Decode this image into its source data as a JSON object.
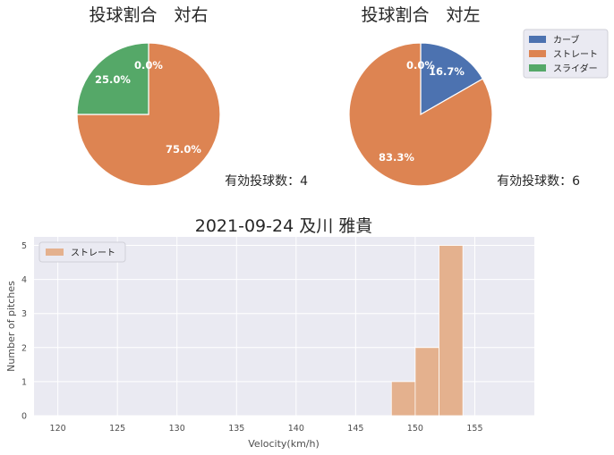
{
  "chart_data": [
    {
      "type": "pie",
      "title": "投球割合　対右",
      "count_label": "有効投球数：4",
      "slices": [
        {
          "name": "カーブ",
          "value": 0.0,
          "label": "0.0%"
        },
        {
          "name": "ストレート",
          "value": 75.0,
          "label": "75.0%"
        },
        {
          "name": "スライダー",
          "value": 25.0,
          "label": "25.0%"
        }
      ]
    },
    {
      "type": "pie",
      "title": "投球割合　対左",
      "count_label": "有効投球数：6",
      "slices": [
        {
          "name": "カーブ",
          "value": 16.7,
          "label": "16.7%"
        },
        {
          "name": "ストレート",
          "value": 83.3,
          "label": "83.3%"
        },
        {
          "name": "スライダー",
          "value": 0.0,
          "label": "0.0%"
        }
      ]
    },
    {
      "type": "bar",
      "subtype": "histogram",
      "title": "2021-09-24 及川 雅貴",
      "xlabel": "Velocity(km/h)",
      "ylabel": "Number of pitches",
      "xlim": [
        118,
        160
      ],
      "ylim": [
        0,
        5.25
      ],
      "xticks": [
        120,
        125,
        130,
        135,
        140,
        145,
        150,
        155
      ],
      "yticks": [
        0,
        1,
        2,
        3,
        4,
        5
      ],
      "grid": true,
      "legend_position": "top-left",
      "series": [
        {
          "name": "ストレート",
          "bins": [
            [
              148,
              150,
              1
            ],
            [
              150,
              152,
              2
            ],
            [
              152,
              154,
              5
            ]
          ]
        }
      ]
    }
  ],
  "legend": {
    "position": "top-right",
    "items": [
      {
        "label": "カーブ",
        "color": "#4c72b0"
      },
      {
        "label": "ストレート",
        "color": "#dd8452"
      },
      {
        "label": "スライダー",
        "color": "#55a868"
      }
    ]
  },
  "colors": {
    "curve": "#4c72b0",
    "straight": "#dd8452",
    "slider": "#55a868",
    "hist_bar": "#e4b18e",
    "axes_bg": "#eaeaf2",
    "grid": "#ffffff"
  }
}
